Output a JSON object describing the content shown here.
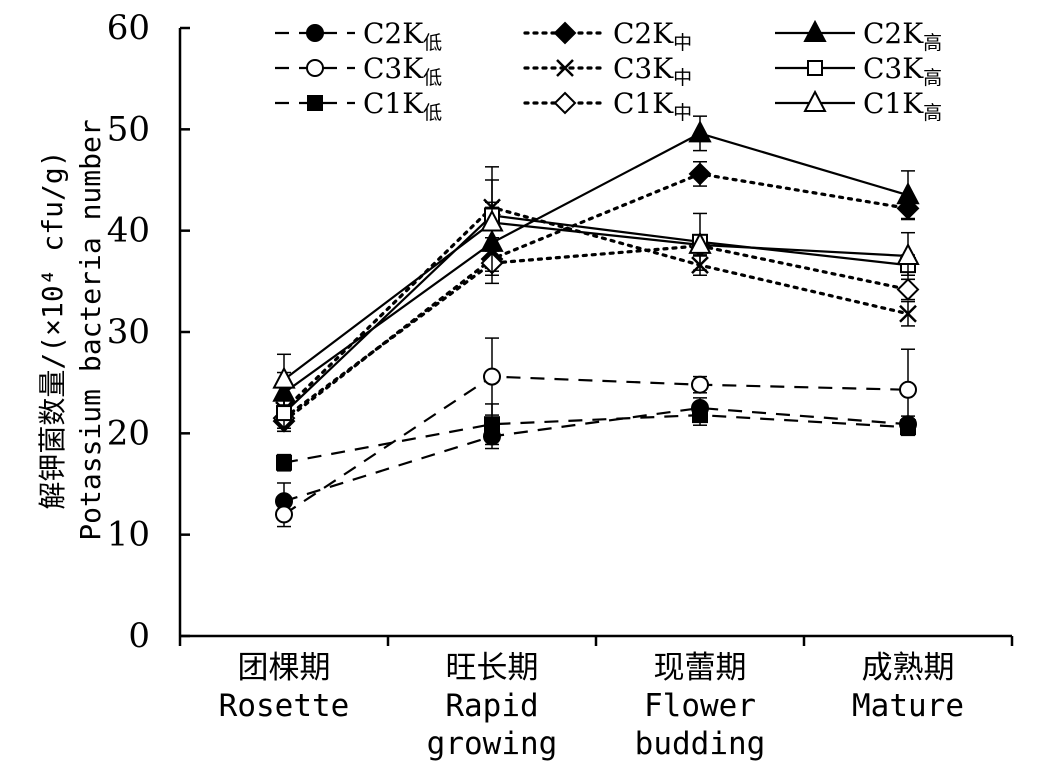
{
  "chart_data": {
    "type": "line",
    "ylabel_cn": "解钾菌数量/(×10⁴ cfu/g)",
    "ylabel_en": "Potassium bacteria number",
    "ylim": [
      0,
      60
    ],
    "yticks": [
      "0",
      "10",
      "20",
      "30",
      "40",
      "50",
      "60"
    ],
    "categories": [
      {
        "cn": "团棵期",
        "en1": "Rosette",
        "en2": ""
      },
      {
        "cn": "旺长期",
        "en1": "Rapid",
        "en2": "growing"
      },
      {
        "cn": "现蕾期",
        "en1": "Flower",
        "en2": "budding"
      },
      {
        "cn": "成熟期",
        "en1": "Mature",
        "en2": ""
      }
    ],
    "series": [
      {
        "name": "C2K",
        "sub": "低",
        "style": "dashed",
        "marker": "circle-filled",
        "values": [
          13.3,
          19.7,
          22.5,
          20.9
        ],
        "errors": [
          1.8,
          1.2,
          1.0,
          0.8
        ]
      },
      {
        "name": "C3K",
        "sub": "低",
        "style": "dashed",
        "marker": "circle-open",
        "values": [
          12.0,
          25.6,
          24.8,
          24.3
        ],
        "errors": [
          1.2,
          3.8,
          0.8,
          4.0
        ]
      },
      {
        "name": "C1K",
        "sub": "低",
        "style": "dashed",
        "marker": "square-filled",
        "values": [
          17.1,
          20.9,
          21.8,
          20.6
        ],
        "errors": [
          0.8,
          2.0,
          1.0,
          0.8
        ]
      },
      {
        "name": "C2K",
        "sub": "中",
        "style": "dotted",
        "marker": "diamond-filled",
        "values": [
          21.2,
          37.2,
          45.6,
          42.2
        ],
        "errors": [
          1.0,
          1.2,
          1.2,
          1.0
        ]
      },
      {
        "name": "C3K",
        "sub": "中",
        "style": "dotted",
        "marker": "x",
        "values": [
          22.3,
          42.3,
          36.6,
          31.8
        ],
        "errors": [
          1.0,
          4.0,
          1.0,
          1.2
        ]
      },
      {
        "name": "C1K",
        "sub": "中",
        "style": "dotted",
        "marker": "diamond-open",
        "values": [
          21.5,
          36.8,
          38.5,
          34.2
        ],
        "errors": [
          1.0,
          1.2,
          1.0,
          1.0
        ]
      },
      {
        "name": "C2K",
        "sub": "高",
        "style": "solid",
        "marker": "triangle-filled",
        "values": [
          24.0,
          38.8,
          49.6,
          43.5
        ],
        "errors": [
          2.0,
          4.0,
          1.7,
          2.4
        ]
      },
      {
        "name": "C3K",
        "sub": "高",
        "style": "solid",
        "marker": "square-open",
        "values": [
          22.0,
          41.5,
          38.9,
          36.6
        ],
        "errors": [
          1.8,
          3.5,
          2.8,
          1.0
        ]
      },
      {
        "name": "C1K",
        "sub": "高",
        "style": "solid",
        "marker": "triangle-open",
        "values": [
          25.3,
          40.8,
          38.6,
          37.5
        ],
        "errors": [
          2.5,
          1.5,
          1.0,
          2.3
        ]
      }
    ]
  }
}
